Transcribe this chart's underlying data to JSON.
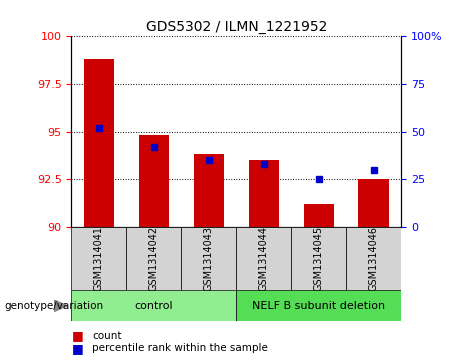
{
  "title": "GDS5302 / ILMN_1221952",
  "samples": [
    "GSM1314041",
    "GSM1314042",
    "GSM1314043",
    "GSM1314044",
    "GSM1314045",
    "GSM1314046"
  ],
  "red_values": [
    98.8,
    94.8,
    93.8,
    93.5,
    91.2,
    92.5
  ],
  "blue_values": [
    52,
    42,
    35,
    33,
    25,
    30
  ],
  "ylim_left": [
    90,
    100
  ],
  "ylim_right": [
    0,
    100
  ],
  "yticks_left": [
    90,
    92.5,
    95,
    97.5,
    100
  ],
  "ytick_labels_left": [
    "90",
    "92.5",
    "95",
    "97.5",
    "100"
  ],
  "yticks_right": [
    0,
    25,
    50,
    75,
    100
  ],
  "ytick_labels_right": [
    "0",
    "25",
    "50",
    "75",
    "100%"
  ],
  "bar_color": "#cc0000",
  "dot_color": "#0000cc",
  "bar_baseline": 90,
  "groups": [
    {
      "label": "control",
      "indices": [
        0,
        1,
        2
      ],
      "color": "#90EE90"
    },
    {
      "label": "NELF B subunit deletion",
      "indices": [
        3,
        4,
        5
      ],
      "color": "#55dd55"
    }
  ],
  "group_label": "genotype/variation",
  "legend_count": "count",
  "legend_pct": "percentile rank within the sample",
  "bg_color": "#d3d3d3",
  "plot_bg": "#ffffff",
  "title_fontsize": 10,
  "tick_fontsize": 8,
  "sample_fontsize": 7,
  "group_fontsize": 8,
  "legend_fontsize": 7.5
}
